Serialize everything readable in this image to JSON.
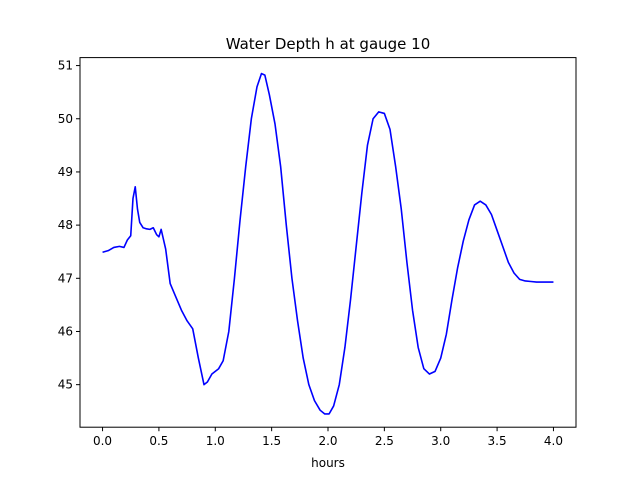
{
  "chart_data": {
    "type": "line",
    "title": "Water Depth h at gauge 10",
    "xlabel": "hours",
    "ylabel": "",
    "xlim": [
      -0.2,
      4.2
    ],
    "ylim": [
      44.2,
      51.15
    ],
    "xticks": [
      0.0,
      0.5,
      1.0,
      1.5,
      2.0,
      2.5,
      3.0,
      3.5,
      4.0
    ],
    "xtick_labels": [
      "0.0",
      "0.5",
      "1.0",
      "1.5",
      "2.0",
      "2.5",
      "3.0",
      "3.5",
      "4.0"
    ],
    "yticks": [
      45,
      46,
      47,
      48,
      49,
      50,
      51
    ],
    "ytick_labels": [
      "45",
      "46",
      "47",
      "48",
      "49",
      "50",
      "51"
    ],
    "grid": false,
    "series": [
      {
        "color": "#0000ff",
        "points": [
          [
            0.0,
            47.49
          ],
          [
            0.05,
            47.52
          ],
          [
            0.1,
            47.58
          ],
          [
            0.15,
            47.6
          ],
          [
            0.19,
            47.58
          ],
          [
            0.22,
            47.72
          ],
          [
            0.25,
            47.8
          ],
          [
            0.27,
            48.5
          ],
          [
            0.29,
            48.72
          ],
          [
            0.31,
            48.3
          ],
          [
            0.33,
            48.05
          ],
          [
            0.36,
            47.95
          ],
          [
            0.39,
            47.93
          ],
          [
            0.42,
            47.92
          ],
          [
            0.45,
            47.95
          ],
          [
            0.48,
            47.82
          ],
          [
            0.5,
            47.78
          ],
          [
            0.52,
            47.92
          ],
          [
            0.56,
            47.55
          ],
          [
            0.6,
            46.9
          ],
          [
            0.65,
            46.65
          ],
          [
            0.7,
            46.4
          ],
          [
            0.75,
            46.2
          ],
          [
            0.8,
            46.05
          ],
          [
            0.85,
            45.5
          ],
          [
            0.9,
            45.0
          ],
          [
            0.93,
            45.05
          ],
          [
            0.97,
            45.2
          ],
          [
            1.0,
            45.25
          ],
          [
            1.03,
            45.3
          ],
          [
            1.07,
            45.45
          ],
          [
            1.12,
            46.0
          ],
          [
            1.17,
            47.0
          ],
          [
            1.22,
            48.1
          ],
          [
            1.27,
            49.1
          ],
          [
            1.32,
            50.0
          ],
          [
            1.37,
            50.6
          ],
          [
            1.41,
            50.85
          ],
          [
            1.44,
            50.82
          ],
          [
            1.48,
            50.45
          ],
          [
            1.53,
            49.9
          ],
          [
            1.58,
            49.1
          ],
          [
            1.63,
            48.0
          ],
          [
            1.68,
            47.0
          ],
          [
            1.73,
            46.2
          ],
          [
            1.78,
            45.5
          ],
          [
            1.83,
            45.0
          ],
          [
            1.88,
            44.7
          ],
          [
            1.93,
            44.52
          ],
          [
            1.97,
            44.45
          ],
          [
            2.01,
            44.45
          ],
          [
            2.05,
            44.6
          ],
          [
            2.1,
            45.0
          ],
          [
            2.15,
            45.7
          ],
          [
            2.2,
            46.6
          ],
          [
            2.25,
            47.6
          ],
          [
            2.3,
            48.6
          ],
          [
            2.35,
            49.5
          ],
          [
            2.4,
            50.0
          ],
          [
            2.45,
            50.13
          ],
          [
            2.5,
            50.1
          ],
          [
            2.55,
            49.8
          ],
          [
            2.6,
            49.1
          ],
          [
            2.65,
            48.3
          ],
          [
            2.7,
            47.3
          ],
          [
            2.75,
            46.4
          ],
          [
            2.8,
            45.7
          ],
          [
            2.85,
            45.3
          ],
          [
            2.9,
            45.2
          ],
          [
            2.95,
            45.25
          ],
          [
            3.0,
            45.5
          ],
          [
            3.05,
            45.95
          ],
          [
            3.1,
            46.6
          ],
          [
            3.15,
            47.2
          ],
          [
            3.2,
            47.7
          ],
          [
            3.25,
            48.1
          ],
          [
            3.3,
            48.38
          ],
          [
            3.35,
            48.45
          ],
          [
            3.4,
            48.38
          ],
          [
            3.45,
            48.2
          ],
          [
            3.5,
            47.9
          ],
          [
            3.55,
            47.6
          ],
          [
            3.6,
            47.3
          ],
          [
            3.65,
            47.1
          ],
          [
            3.7,
            46.98
          ],
          [
            3.75,
            46.95
          ],
          [
            3.8,
            46.94
          ],
          [
            3.85,
            46.93
          ],
          [
            3.9,
            46.93
          ],
          [
            3.95,
            46.93
          ],
          [
            4.0,
            46.93
          ]
        ]
      }
    ]
  }
}
